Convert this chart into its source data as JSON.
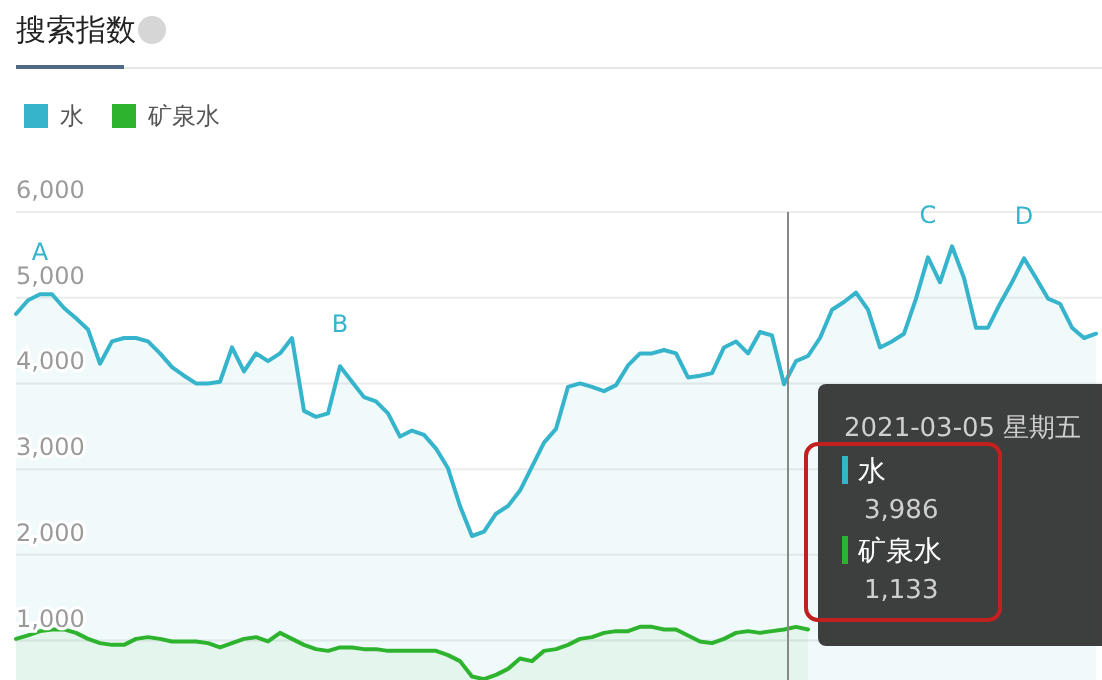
{
  "chart_data": {
    "type": "area",
    "title": "搜索指数",
    "legend": "top left",
    "grid": "y",
    "marker": "none",
    "line_style": "solid",
    "categories": [
      null,
      null,
      null,
      null,
      null,
      null,
      null,
      null,
      null,
      null,
      null,
      null,
      null,
      null,
      null,
      null,
      null,
      null,
      null,
      null,
      null,
      null,
      null,
      null,
      null,
      null,
      null,
      null,
      null,
      null,
      null,
      null,
      null,
      null,
      null,
      null,
      null,
      null,
      null,
      null,
      null,
      null,
      null,
      null,
      null,
      null,
      null,
      null,
      null,
      null,
      null,
      null,
      null,
      null,
      null,
      null,
      null,
      null,
      null,
      null,
      null,
      null,
      null,
      null,
      null,
      null,
      null,
      null,
      null,
      null,
      null,
      null,
      null,
      null,
      null,
      null,
      null,
      null,
      null,
      null,
      null,
      null,
      null,
      null,
      null,
      null,
      null,
      null,
      null,
      null,
      null
    ],
    "series": [
      {
        "name": "水",
        "color": "#36b4cc",
        "values": [
          4810,
          4970,
          5040,
          5040,
          4880,
          4760,
          4630,
          4230,
          4490,
          4530,
          4530,
          4490,
          4350,
          4190,
          4090,
          4000,
          4000,
          4020,
          4420,
          4140,
          4350,
          4260,
          4350,
          4530,
          3680,
          3610,
          3650,
          4200,
          4020,
          3840,
          3790,
          3650,
          3380,
          3450,
          3400,
          3240,
          3010,
          2570,
          2220,
          2270,
          2480,
          2570,
          2750,
          3030,
          3310,
          3470,
          3960,
          4000,
          3960,
          3910,
          3980,
          4210,
          4350,
          4350,
          4390,
          4350,
          4070,
          4090,
          4120,
          4420,
          4490,
          4350,
          4600,
          4560,
          3990,
          4260,
          4320,
          4530,
          4860,
          4950,
          5060,
          4860,
          4420,
          4490,
          4580,
          4990,
          5470,
          5180,
          5600,
          5230,
          4650,
          4650,
          4930,
          5180,
          5460,
          5230,
          4990,
          4930,
          4650,
          4530,
          4580
        ]
      },
      {
        "name": "矿泉水",
        "color": "#2db32d",
        "values": [
          1020,
          1060,
          1110,
          1130,
          1130,
          1090,
          1020,
          970,
          950,
          950,
          1020,
          1040,
          1020,
          990,
          990,
          990,
          970,
          920,
          970,
          1020,
          1040,
          990,
          1090,
          1020,
          950,
          900,
          880,
          920,
          920,
          900,
          900,
          880,
          880,
          880,
          880,
          880,
          830,
          760,
          580,
          550,
          600,
          670,
          790,
          760,
          880,
          900,
          950,
          1020,
          1040,
          1090,
          1110,
          1110,
          1160,
          1160,
          1130,
          1130,
          1060,
          990,
          970,
          1020,
          1090,
          1110,
          1090,
          1110,
          1130,
          1160,
          1130,
          null,
          null,
          null,
          null,
          null,
          null,
          null,
          null,
          null,
          null,
          null,
          null,
          null,
          null,
          null,
          null,
          null,
          null,
          null,
          null,
          null,
          null,
          null,
          null
        ]
      }
    ],
    "ylim": [
      540,
      6000
    ],
    "yticks": [
      {
        "value": 1000,
        "label": "1,000"
      },
      {
        "value": 2000,
        "label": "2,000"
      },
      {
        "value": 3000,
        "label": "3,000"
      },
      {
        "value": 4000,
        "label": "4,000"
      },
      {
        "value": 5000,
        "label": "5,000"
      },
      {
        "value": 6000,
        "label": "6,000"
      }
    ],
    "tick_labels": "y",
    "annotations": [
      {
        "text": "A",
        "y": 5040
      },
      {
        "text": "B",
        "y": 4200
      },
      {
        "text": "C",
        "y": 5470
      },
      {
        "text": "D",
        "y": 5460
      },
      "2021-03-05 星期五",
      "3,986",
      "1,133"
    ]
  }
}
